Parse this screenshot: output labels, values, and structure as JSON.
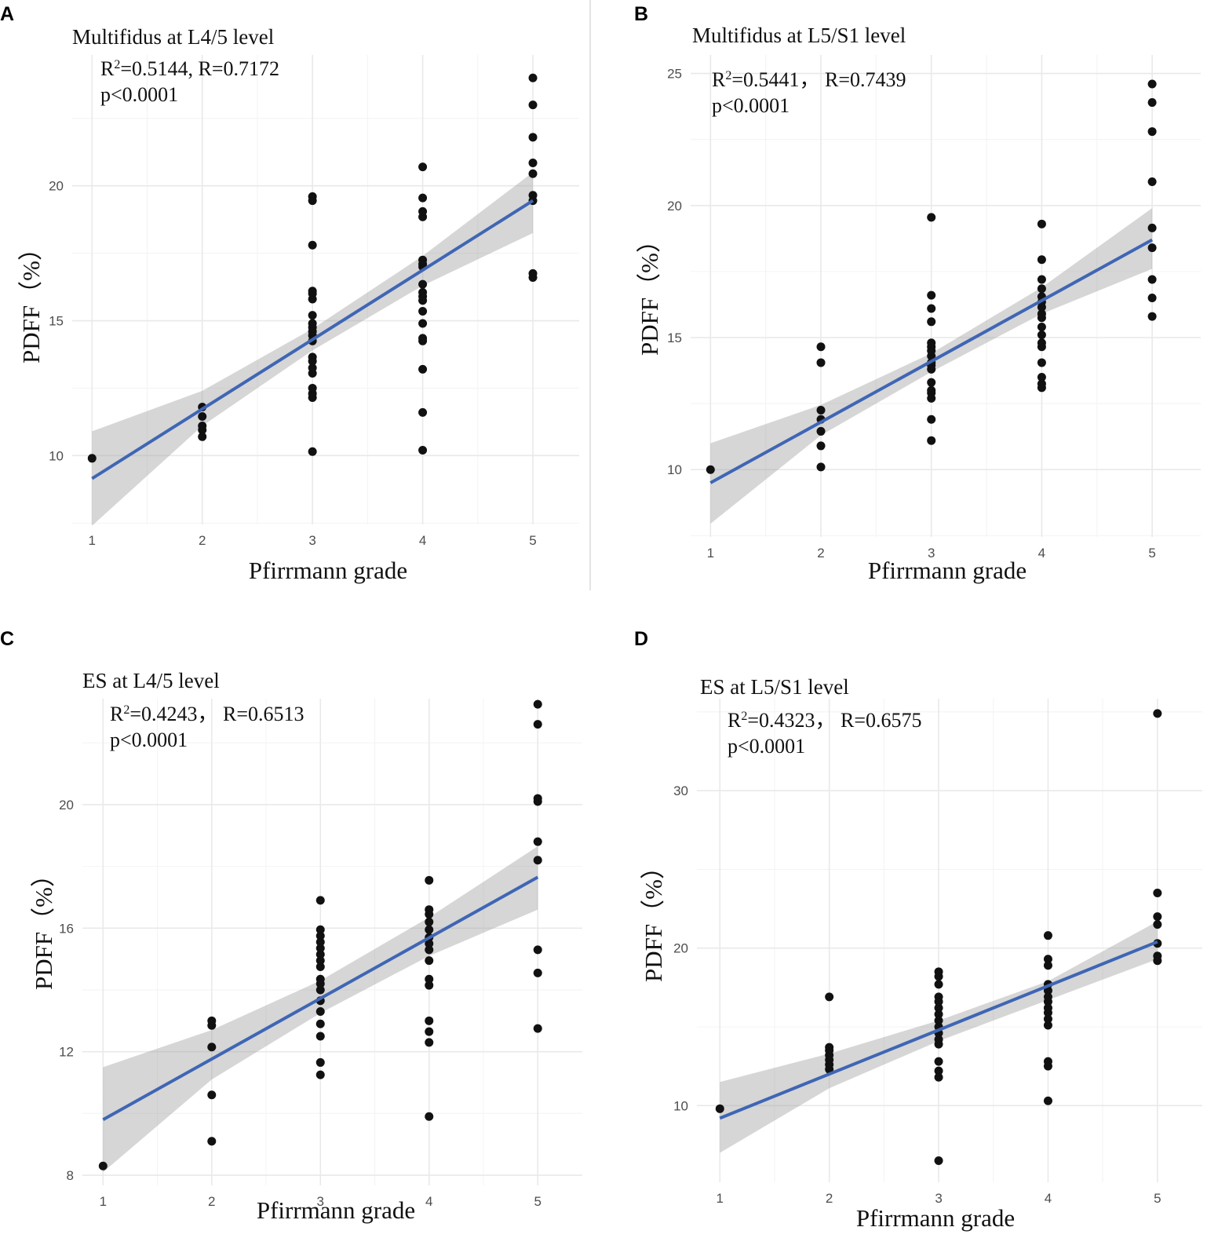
{
  "figure": {
    "accent_color": "#3f66b4",
    "ci_color": "#999999",
    "point_color": "#111111"
  },
  "chart_data": [
    {
      "panel": "A",
      "type": "scatter",
      "title": "Multifidus at L4/5 level",
      "annotation": {
        "r2_line": "R²=0.5144, R=0.7172",
        "p_line": "p<0.0001"
      },
      "xlabel": "Pfirrmann grade",
      "ylabel": "PDFF（%）",
      "xlim": [
        0.82,
        5.42
      ],
      "ylim": [
        7.45,
        24.85
      ],
      "xticks": [
        1,
        2,
        3,
        4,
        5
      ],
      "yticks": [
        10,
        15,
        20
      ],
      "points": [
        [
          1,
          9.9
        ],
        [
          2,
          10.7
        ],
        [
          2,
          10.95
        ],
        [
          2,
          11.1
        ],
        [
          2,
          11.45
        ],
        [
          2,
          11.8
        ],
        [
          3,
          10.15
        ],
        [
          3,
          12.15
        ],
        [
          3,
          12.3
        ],
        [
          3,
          12.5
        ],
        [
          3,
          13.05
        ],
        [
          3,
          13.25
        ],
        [
          3,
          13.5
        ],
        [
          3,
          13.65
        ],
        [
          3,
          14.25
        ],
        [
          3,
          14.45
        ],
        [
          3,
          14.6
        ],
        [
          3,
          14.75
        ],
        [
          3,
          14.9
        ],
        [
          3,
          15.2
        ],
        [
          3,
          15.8
        ],
        [
          3,
          16.0
        ],
        [
          3,
          16.1
        ],
        [
          3,
          17.8
        ],
        [
          3,
          19.45
        ],
        [
          3,
          19.6
        ],
        [
          4,
          10.2
        ],
        [
          4,
          11.6
        ],
        [
          4,
          13.2
        ],
        [
          4,
          14.25
        ],
        [
          4,
          14.35
        ],
        [
          4,
          14.9
        ],
        [
          4,
          15.35
        ],
        [
          4,
          15.75
        ],
        [
          4,
          15.9
        ],
        [
          4,
          16.05
        ],
        [
          4,
          16.35
        ],
        [
          4,
          17.0
        ],
        [
          4,
          17.1
        ],
        [
          4,
          17.25
        ],
        [
          4,
          18.85
        ],
        [
          4,
          19.05
        ],
        [
          4,
          19.55
        ],
        [
          4,
          20.7
        ],
        [
          5,
          16.6
        ],
        [
          5,
          16.75
        ],
        [
          5,
          19.45
        ],
        [
          5,
          19.65
        ],
        [
          5,
          20.45
        ],
        [
          5,
          20.85
        ],
        [
          5,
          21.8
        ],
        [
          5,
          23.0
        ],
        [
          5,
          24.0
        ]
      ],
      "fit": {
        "x": [
          1,
          5
        ],
        "y": [
          9.15,
          19.45
        ]
      },
      "ci": {
        "x": [
          1,
          2,
          3,
          4,
          5
        ],
        "lower": [
          7.4,
          11.1,
          13.9,
          16.3,
          18.25
        ],
        "upper": [
          10.9,
          12.4,
          14.7,
          17.4,
          20.5
        ]
      }
    },
    {
      "panel": "B",
      "type": "scatter",
      "title": "Multifidus at L5/S1 level",
      "annotation": {
        "r2_line": "R²=0.5441， R=0.7439",
        "p_line": "p<0.0001"
      },
      "xlabel": "Pfirrmann grade",
      "ylabel": "PDFF（%）",
      "xlim": [
        0.82,
        5.44
      ],
      "ylim": [
        7.45,
        25.7
      ],
      "xticks": [
        1,
        2,
        3,
        4,
        5
      ],
      "yticks": [
        10,
        15,
        20,
        25
      ],
      "points": [
        [
          1,
          10.0
        ],
        [
          2,
          10.1
        ],
        [
          2,
          10.9
        ],
        [
          2,
          11.45
        ],
        [
          2,
          11.9
        ],
        [
          2,
          12.25
        ],
        [
          2,
          14.05
        ],
        [
          2,
          14.65
        ],
        [
          3,
          11.1
        ],
        [
          3,
          11.9
        ],
        [
          3,
          12.7
        ],
        [
          3,
          12.9
        ],
        [
          3,
          13.0
        ],
        [
          3,
          13.3
        ],
        [
          3,
          13.8
        ],
        [
          3,
          13.95
        ],
        [
          3,
          14.05
        ],
        [
          3,
          14.3
        ],
        [
          3,
          14.5
        ],
        [
          3,
          14.65
        ],
        [
          3,
          14.8
        ],
        [
          3,
          15.6
        ],
        [
          3,
          16.1
        ],
        [
          3,
          16.6
        ],
        [
          3,
          19.55
        ],
        [
          4,
          13.1
        ],
        [
          4,
          13.25
        ],
        [
          4,
          13.5
        ],
        [
          4,
          14.05
        ],
        [
          4,
          14.65
        ],
        [
          4,
          14.8
        ],
        [
          4,
          15.1
        ],
        [
          4,
          15.4
        ],
        [
          4,
          15.75
        ],
        [
          4,
          15.9
        ],
        [
          4,
          16.15
        ],
        [
          4,
          16.35
        ],
        [
          4,
          16.55
        ],
        [
          4,
          16.85
        ],
        [
          4,
          17.2
        ],
        [
          4,
          17.95
        ],
        [
          4,
          19.3
        ],
        [
          5,
          15.8
        ],
        [
          5,
          16.5
        ],
        [
          5,
          17.2
        ],
        [
          5,
          18.4
        ],
        [
          5,
          19.15
        ],
        [
          5,
          20.9
        ],
        [
          5,
          22.8
        ],
        [
          5,
          23.9
        ],
        [
          5,
          24.6
        ]
      ],
      "fit": {
        "x": [
          1,
          5
        ],
        "y": [
          9.5,
          18.7
        ]
      },
      "ci": {
        "x": [
          1,
          2,
          3,
          4,
          5
        ],
        "lower": [
          7.95,
          11.3,
          13.7,
          15.9,
          17.6
        ],
        "upper": [
          11.0,
          12.45,
          14.4,
          16.9,
          19.9
        ]
      }
    },
    {
      "panel": "C",
      "type": "scatter",
      "title": "ES at L4/5 level",
      "annotation": {
        "r2_line": "R²=0.4243， R=0.6513",
        "p_line": "p<0.0001"
      },
      "xlabel": "Pfirrmann grade",
      "ylabel": "PDFF（%）",
      "xlim": [
        0.81,
        5.41
      ],
      "ylim": [
        7.67,
        23.43
      ],
      "xticks": [
        1,
        2,
        3,
        4,
        5
      ],
      "yticks": [
        8,
        12,
        16,
        20
      ],
      "points": [
        [
          1,
          8.3
        ],
        [
          2,
          9.1
        ],
        [
          2,
          10.6
        ],
        [
          2,
          12.15
        ],
        [
          2,
          12.85
        ],
        [
          2,
          13.0
        ],
        [
          3,
          11.25
        ],
        [
          3,
          11.65
        ],
        [
          3,
          12.5
        ],
        [
          3,
          12.9
        ],
        [
          3,
          13.3
        ],
        [
          3,
          13.65
        ],
        [
          3,
          14.0
        ],
        [
          3,
          14.2
        ],
        [
          3,
          14.35
        ],
        [
          3,
          14.75
        ],
        [
          3,
          14.95
        ],
        [
          3,
          15.15
        ],
        [
          3,
          15.35
        ],
        [
          3,
          15.55
        ],
        [
          3,
          15.75
        ],
        [
          3,
          15.95
        ],
        [
          3,
          16.9
        ],
        [
          4,
          9.9
        ],
        [
          4,
          12.3
        ],
        [
          4,
          12.65
        ],
        [
          4,
          13.0
        ],
        [
          4,
          14.15
        ],
        [
          4,
          14.35
        ],
        [
          4,
          14.95
        ],
        [
          4,
          15.3
        ],
        [
          4,
          15.5
        ],
        [
          4,
          15.7
        ],
        [
          4,
          15.95
        ],
        [
          4,
          16.2
        ],
        [
          4,
          16.45
        ],
        [
          4,
          16.6
        ],
        [
          4,
          17.55
        ],
        [
          5,
          12.75
        ],
        [
          5,
          14.55
        ],
        [
          5,
          15.3
        ],
        [
          5,
          18.2
        ],
        [
          5,
          18.8
        ],
        [
          5,
          20.1
        ],
        [
          5,
          20.2
        ],
        [
          5,
          22.6
        ],
        [
          5,
          23.25
        ]
      ],
      "fit": {
        "x": [
          1,
          5
        ],
        "y": [
          9.8,
          17.65
        ]
      },
      "ci": {
        "x": [
          1,
          2,
          3,
          4,
          5
        ],
        "lower": [
          8.1,
          11.1,
          13.25,
          15.1,
          16.6
        ],
        "upper": [
          11.5,
          12.7,
          14.3,
          16.35,
          18.65
        ]
      }
    },
    {
      "panel": "D",
      "type": "scatter",
      "title": "ES at L5/S1 level",
      "annotation": {
        "r2_line": "R²=0.4323， R=0.6575",
        "p_line": "p<0.0001"
      },
      "xlabel": "Pfirrmann grade",
      "ylabel": "PDFF（%）",
      "xlim": [
        0.79,
        5.41
      ],
      "ylim": [
        5.13,
        35.84
      ],
      "xticks": [
        1,
        2,
        3,
        4,
        5
      ],
      "yticks": [
        10,
        20,
        30
      ],
      "points": [
        [
          1,
          9.8
        ],
        [
          2,
          12.3
        ],
        [
          2,
          12.6
        ],
        [
          2,
          12.9
        ],
        [
          2,
          13.2
        ],
        [
          2,
          13.5
        ],
        [
          2,
          13.7
        ],
        [
          2,
          16.9
        ],
        [
          3,
          6.5
        ],
        [
          3,
          11.8
        ],
        [
          3,
          12.2
        ],
        [
          3,
          12.8
        ],
        [
          3,
          13.9
        ],
        [
          3,
          14.2
        ],
        [
          3,
          14.6
        ],
        [
          3,
          15.0
        ],
        [
          3,
          15.4
        ],
        [
          3,
          15.8
        ],
        [
          3,
          16.2
        ],
        [
          3,
          16.6
        ],
        [
          3,
          16.9
        ],
        [
          3,
          17.7
        ],
        [
          3,
          18.2
        ],
        [
          3,
          18.5
        ],
        [
          4,
          10.3
        ],
        [
          4,
          12.5
        ],
        [
          4,
          12.8
        ],
        [
          4,
          15.1
        ],
        [
          4,
          15.5
        ],
        [
          4,
          15.9
        ],
        [
          4,
          16.2
        ],
        [
          4,
          16.6
        ],
        [
          4,
          16.9
        ],
        [
          4,
          17.3
        ],
        [
          4,
          17.7
        ],
        [
          4,
          18.9
        ],
        [
          4,
          19.3
        ],
        [
          4,
          20.8
        ],
        [
          5,
          19.2
        ],
        [
          5,
          19.5
        ],
        [
          5,
          20.3
        ],
        [
          5,
          21.5
        ],
        [
          5,
          22.0
        ],
        [
          5,
          23.5
        ],
        [
          5,
          34.9
        ]
      ],
      "fit": {
        "x": [
          1,
          5
        ],
        "y": [
          9.2,
          20.4
        ]
      },
      "ci": {
        "x": [
          1,
          2,
          3,
          4,
          5
        ],
        "lower": [
          7.0,
          11.1,
          14.1,
          16.7,
          19.3
        ],
        "upper": [
          11.5,
          13.3,
          15.4,
          17.9,
          21.7
        ]
      }
    }
  ]
}
